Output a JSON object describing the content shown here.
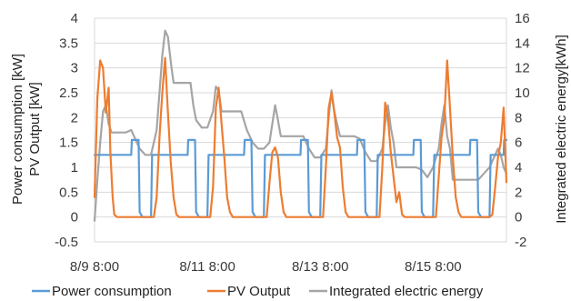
{
  "chart_data": {
    "type": "line",
    "title": "",
    "y_left_label_lines": [
      "Power consumption [kW]",
      "PV Output [kW]"
    ],
    "y_right_label": "Integrated electric energy[kWh]",
    "x_tick_labels": [
      "8/9 8:00",
      "8/11 8:00",
      "8/13 8:00",
      "8/15 8:00"
    ],
    "x_tick_days": [
      0,
      2,
      4,
      6
    ],
    "xlim_days": [
      0,
      7.3
    ],
    "ylim_left": [
      -0.5,
      4
    ],
    "y_left_ticks": [
      "-0.5",
      "0",
      "0.5",
      "1",
      "1.5",
      "2",
      "2.5",
      "3",
      "3.5",
      "4"
    ],
    "ylim_right": [
      -2,
      16
    ],
    "y_right_ticks": [
      "-2",
      "0",
      "2",
      "4",
      "6",
      "8",
      "10",
      "12",
      "14",
      "16"
    ],
    "grid": "horizontal",
    "legend_position": "bottom",
    "series": [
      {
        "name": "Power consumption",
        "axis": "left",
        "color": "#5b9bd5",
        "x_days": [
          0,
          0.01,
          0.65,
          0.66,
          0.78,
          0.8,
          0.85,
          1.0,
          1.02,
          1.65,
          1.66,
          1.78,
          1.8,
          1.85,
          2.0,
          2.02,
          2.65,
          2.66,
          2.78,
          2.8,
          2.85,
          3.0,
          3.02,
          3.65,
          3.66,
          3.78,
          3.8,
          3.85,
          4.0,
          4.02,
          4.65,
          4.66,
          4.78,
          4.8,
          4.85,
          5.0,
          5.02,
          5.65,
          5.66,
          5.78,
          5.8,
          5.85,
          6.0,
          6.02,
          6.65,
          6.66,
          6.78,
          6.8,
          6.85,
          7.0,
          7.02,
          7.25,
          7.26,
          7.3
        ],
        "values": [
          1.25,
          1.25,
          1.25,
          1.55,
          1.55,
          0.1,
          0.0,
          0.0,
          1.25,
          1.25,
          1.55,
          1.55,
          0.1,
          0.0,
          0.0,
          1.25,
          1.25,
          1.55,
          1.55,
          0.1,
          0.0,
          0.0,
          1.25,
          1.25,
          1.55,
          1.55,
          0.1,
          0.0,
          0.0,
          1.25,
          1.25,
          1.55,
          1.55,
          0.1,
          0.0,
          0.0,
          1.25,
          1.25,
          1.55,
          1.55,
          0.1,
          0.0,
          0.0,
          1.25,
          1.25,
          1.55,
          1.55,
          0.1,
          0.0,
          0.0,
          1.25,
          1.25,
          1.55,
          1.55
        ]
      },
      {
        "name": "PV Output",
        "axis": "left",
        "color": "#ed7d31",
        "x_days": [
          0.0,
          0.05,
          0.1,
          0.15,
          0.2,
          0.25,
          0.28,
          0.32,
          0.35,
          0.4,
          0.45,
          0.5,
          0.55,
          0.58,
          0.7,
          0.72,
          0.8,
          0.85,
          0.9,
          1.0,
          1.05,
          1.1,
          1.15,
          1.2,
          1.25,
          1.3,
          1.35,
          1.4,
          1.45,
          1.5,
          1.55,
          1.6,
          1.7,
          1.72,
          1.8,
          1.85,
          1.9,
          2.0,
          2.05,
          2.1,
          2.15,
          2.2,
          2.25,
          2.3,
          2.35,
          2.4,
          2.45,
          2.5,
          2.55,
          2.6,
          2.7,
          2.72,
          2.8,
          2.85,
          2.9,
          3.0,
          3.05,
          3.1,
          3.15,
          3.2,
          3.25,
          3.3,
          3.35,
          3.4,
          3.45,
          3.5,
          3.55,
          3.6,
          3.7,
          3.72,
          3.8,
          3.85,
          3.9,
          4.0,
          4.05,
          4.1,
          4.15,
          4.2,
          4.25,
          4.3,
          4.35,
          4.4,
          4.45,
          4.5,
          4.55,
          4.6,
          4.7,
          4.72,
          4.8,
          4.85,
          4.9,
          5.0,
          5.05,
          5.1,
          5.15,
          5.2,
          5.25,
          5.3,
          5.35,
          5.4,
          5.45,
          5.5,
          5.55,
          5.6,
          5.7,
          5.72,
          5.8,
          5.85,
          5.9,
          6.0,
          6.05,
          6.1,
          6.15,
          6.2,
          6.25,
          6.3,
          6.35,
          6.4,
          6.45,
          6.5,
          6.55,
          6.6,
          6.7,
          6.72,
          6.8,
          6.85,
          6.9,
          7.0,
          7.05,
          7.1,
          7.15,
          7.2,
          7.25,
          7.3
        ],
        "values": [
          0.4,
          2.4,
          3.15,
          3.0,
          2.1,
          2.6,
          1.3,
          0.4,
          0.05,
          0.0,
          0.0,
          0.0,
          0.0,
          0.0,
          0.0,
          0.0,
          0.0,
          0.0,
          0.0,
          0.0,
          0.0,
          0.4,
          1.6,
          2.5,
          3.2,
          2.1,
          1.1,
          0.4,
          0.05,
          0.0,
          0.0,
          0.0,
          0.0,
          0.0,
          0.0,
          0.0,
          0.0,
          0.0,
          0.0,
          0.6,
          2.2,
          2.6,
          1.9,
          1.2,
          0.4,
          0.1,
          0.0,
          0.0,
          0.0,
          0.0,
          0.0,
          0.0,
          0.0,
          0.0,
          0.0,
          0.0,
          0.0,
          0.7,
          1.3,
          1.4,
          1.2,
          0.5,
          0.1,
          0.0,
          0.0,
          0.0,
          0.0,
          0.0,
          0.0,
          0.0,
          0.0,
          0.0,
          0.0,
          0.0,
          0.0,
          1.0,
          2.2,
          2.5,
          2.1,
          1.6,
          1.4,
          0.6,
          0.1,
          0.0,
          0.0,
          0.0,
          0.0,
          0.0,
          0.0,
          0.0,
          0.0,
          0.0,
          0.0,
          1.0,
          2.3,
          2.0,
          1.3,
          0.8,
          0.3,
          0.5,
          0.05,
          0.0,
          0.0,
          0.0,
          0.0,
          0.0,
          0.0,
          0.0,
          0.0,
          0.0,
          0.0,
          0.8,
          1.6,
          2.0,
          3.15,
          2.2,
          1.2,
          0.4,
          0.1,
          0.0,
          0.0,
          0.0,
          0.0,
          0.0,
          0.0,
          0.0,
          0.0,
          0.0,
          0.05,
          0.6,
          1.2,
          1.5,
          2.2,
          0.7
        ]
      },
      {
        "name": "Integrated electric energy",
        "axis": "right",
        "color": "#a5a5a5",
        "x_days": [
          0.0,
          0.05,
          0.1,
          0.15,
          0.2,
          0.25,
          0.3,
          0.35,
          0.45,
          0.55,
          0.65,
          0.7,
          0.8,
          0.9,
          1.0,
          1.1,
          1.15,
          1.2,
          1.25,
          1.3,
          1.35,
          1.4,
          1.45,
          1.5,
          1.6,
          1.7,
          1.75,
          1.8,
          1.9,
          2.0,
          2.1,
          2.15,
          2.2,
          2.25,
          2.3,
          2.35,
          2.4,
          2.5,
          2.6,
          2.7,
          2.8,
          2.9,
          3.0,
          3.1,
          3.15,
          3.2,
          3.25,
          3.3,
          3.35,
          3.4,
          3.5,
          3.6,
          3.7,
          3.8,
          3.9,
          4.0,
          4.1,
          4.15,
          4.2,
          4.25,
          4.3,
          4.35,
          4.4,
          4.5,
          4.6,
          4.7,
          4.8,
          4.9,
          5.0,
          5.1,
          5.15,
          5.2,
          5.25,
          5.3,
          5.35,
          5.4,
          5.5,
          5.6,
          5.7,
          5.8,
          5.9,
          6.0,
          6.1,
          6.15,
          6.2,
          6.25,
          6.3,
          6.35,
          6.4,
          6.5,
          6.6,
          6.7,
          6.8,
          6.9,
          7.0,
          7.1,
          7.15,
          7.2,
          7.25,
          7.3
        ],
        "values": [
          -0.3,
          3.0,
          6.0,
          8.5,
          9.0,
          7.5,
          6.8,
          6.8,
          6.8,
          6.8,
          7.0,
          6.5,
          5.5,
          5.0,
          5.0,
          7.0,
          10.0,
          13.0,
          15.0,
          14.5,
          12.5,
          10.8,
          10.8,
          10.8,
          10.8,
          10.8,
          9.0,
          7.8,
          7.2,
          7.2,
          8.5,
          10.5,
          10.2,
          8.5,
          8.5,
          8.5,
          8.5,
          8.5,
          8.5,
          7.0,
          6.0,
          5.5,
          5.5,
          6.0,
          7.5,
          9.0,
          7.8,
          6.5,
          6.5,
          6.5,
          6.5,
          6.5,
          6.5,
          5.5,
          4.8,
          4.8,
          5.5,
          8.0,
          10.2,
          8.5,
          7.5,
          6.5,
          6.5,
          6.5,
          6.5,
          6.3,
          5.2,
          4.5,
          4.5,
          5.5,
          7.5,
          9.0,
          7.2,
          6.0,
          4.0,
          4.0,
          4.0,
          4.0,
          4.0,
          3.8,
          3.2,
          4.0,
          5.5,
          7.5,
          9.0,
          6.5,
          5.5,
          3.0,
          3.0,
          3.0,
          3.0,
          3.0,
          3.0,
          3.5,
          4.0,
          5.0,
          5.5,
          5.0,
          4.0,
          3.5
        ]
      }
    ]
  }
}
